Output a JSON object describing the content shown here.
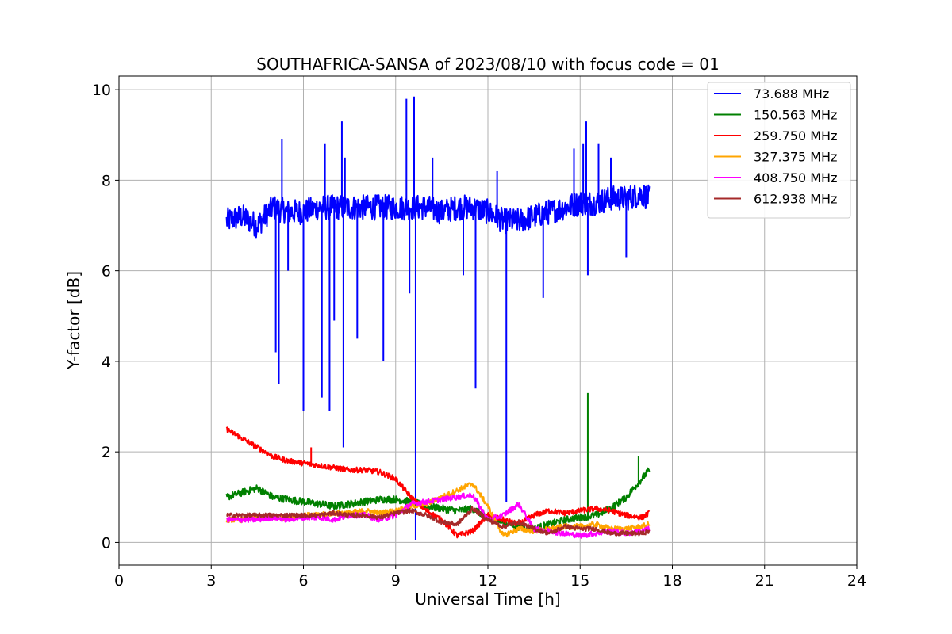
{
  "chart_data": {
    "type": "line",
    "title": "SOUTHAFRICA-SANSA of 2023/08/10 with focus code = 01",
    "xlabel": "Universal Time [h]",
    "ylabel": "Y-factor [dB]",
    "xlim": [
      0,
      24
    ],
    "ylim": [
      -0.5,
      10.3
    ],
    "x_ticks": [
      0,
      3,
      6,
      9,
      12,
      15,
      18,
      21,
      24
    ],
    "y_ticks": [
      0,
      2,
      4,
      6,
      8,
      10
    ],
    "grid": true,
    "legend_position": "top-right",
    "series": [
      {
        "name": " 73.688 MHz",
        "color": "#0000ff",
        "x": [
          3.5,
          4.0,
          4.5,
          5.0,
          5.5,
          6.0,
          6.5,
          7.0,
          7.5,
          8.0,
          8.5,
          9.0,
          9.5,
          10.0,
          10.5,
          11.0,
          11.5,
          12.0,
          12.5,
          13.0,
          13.5,
          14.0,
          14.5,
          15.0,
          15.5,
          16.0,
          16.5,
          17.0,
          17.25
        ],
        "values": [
          7.1,
          7.2,
          7.0,
          7.4,
          7.3,
          7.3,
          7.4,
          7.4,
          7.4,
          7.4,
          7.4,
          7.4,
          7.4,
          7.4,
          7.3,
          7.4,
          7.4,
          7.3,
          7.1,
          7.1,
          7.2,
          7.3,
          7.4,
          7.5,
          7.5,
          7.6,
          7.6,
          7.7,
          7.6
        ],
        "spikes_up": [
          [
            5.3,
            8.9
          ],
          [
            6.7,
            8.8
          ],
          [
            7.25,
            9.3
          ],
          [
            7.35,
            8.5
          ],
          [
            9.35,
            9.8
          ],
          [
            9.6,
            9.85
          ],
          [
            10.2,
            8.5
          ],
          [
            12.3,
            8.2
          ],
          [
            14.8,
            8.7
          ],
          [
            15.1,
            8.8
          ],
          [
            15.2,
            9.3
          ],
          [
            15.6,
            8.8
          ],
          [
            16.0,
            8.5
          ]
        ],
        "spikes_down": [
          [
            5.1,
            4.2
          ],
          [
            5.2,
            3.5
          ],
          [
            5.5,
            6.0
          ],
          [
            6.0,
            2.9
          ],
          [
            6.6,
            3.2
          ],
          [
            6.85,
            2.9
          ],
          [
            7.0,
            4.9
          ],
          [
            7.3,
            2.1
          ],
          [
            7.75,
            4.5
          ],
          [
            8.6,
            4.0
          ],
          [
            9.45,
            5.5
          ],
          [
            9.65,
            0.05
          ],
          [
            11.2,
            5.9
          ],
          [
            11.6,
            3.4
          ],
          [
            12.6,
            0.9
          ],
          [
            13.8,
            5.4
          ],
          [
            15.25,
            5.9
          ],
          [
            16.5,
            6.3
          ]
        ]
      },
      {
        "name": "150.563 MHz",
        "color": "#008000",
        "x": [
          3.5,
          4.0,
          4.5,
          5.0,
          5.5,
          6.0,
          6.5,
          7.0,
          7.5,
          8.0,
          8.5,
          9.0,
          9.5,
          10.0,
          10.5,
          11.0,
          11.5,
          12.0,
          12.5,
          13.0,
          13.5,
          14.0,
          14.5,
          15.0,
          15.5,
          16.0,
          16.5,
          17.0,
          17.25
        ],
        "values": [
          1.0,
          1.1,
          1.2,
          1.0,
          0.95,
          0.9,
          0.85,
          0.8,
          0.85,
          0.9,
          0.95,
          0.95,
          0.9,
          0.8,
          0.75,
          0.7,
          0.75,
          0.55,
          0.45,
          0.35,
          0.3,
          0.4,
          0.5,
          0.55,
          0.6,
          0.75,
          1.0,
          1.4,
          1.6
        ],
        "spikes_up": [
          [
            15.25,
            3.3
          ],
          [
            16.9,
            1.9
          ]
        ],
        "spikes_down": []
      },
      {
        "name": "259.750 MHz",
        "color": "#ff0000",
        "x": [
          3.5,
          4.0,
          4.5,
          5.0,
          5.5,
          6.0,
          6.5,
          7.0,
          7.5,
          8.0,
          8.5,
          9.0,
          9.5,
          10.0,
          10.5,
          11.0,
          11.5,
          12.0,
          12.5,
          13.0,
          13.5,
          14.0,
          14.5,
          15.0,
          15.5,
          16.0,
          16.5,
          17.0,
          17.25
        ],
        "values": [
          2.5,
          2.3,
          2.1,
          1.9,
          1.8,
          1.75,
          1.7,
          1.65,
          1.6,
          1.6,
          1.55,
          1.4,
          1.0,
          0.7,
          0.5,
          0.15,
          0.25,
          0.6,
          0.5,
          0.4,
          0.6,
          0.7,
          0.65,
          0.7,
          0.75,
          0.7,
          0.6,
          0.55,
          0.65
        ],
        "spikes_up": [
          [
            6.25,
            2.1
          ]
        ],
        "spikes_down": []
      },
      {
        "name": "327.375 MHz",
        "color": "#ffa500",
        "x": [
          3.5,
          4.0,
          4.5,
          5.0,
          5.5,
          6.0,
          6.5,
          7.0,
          7.5,
          8.0,
          8.5,
          9.0,
          9.5,
          10.0,
          10.5,
          11.0,
          11.5,
          12.0,
          12.5,
          13.0,
          13.5,
          14.0,
          14.5,
          15.0,
          15.5,
          16.0,
          16.5,
          17.0,
          17.25
        ],
        "values": [
          0.5,
          0.5,
          0.55,
          0.55,
          0.55,
          0.6,
          0.6,
          0.65,
          0.65,
          0.7,
          0.65,
          0.7,
          0.8,
          0.85,
          1.0,
          1.15,
          1.3,
          0.8,
          0.15,
          0.3,
          0.25,
          0.3,
          0.35,
          0.35,
          0.4,
          0.3,
          0.3,
          0.35,
          0.4
        ],
        "spikes_up": [],
        "spikes_down": []
      },
      {
        "name": "408.750 MHz",
        "color": "#ff00ff",
        "x": [
          3.5,
          4.0,
          4.5,
          5.0,
          5.5,
          6.0,
          6.5,
          7.0,
          7.5,
          8.0,
          8.5,
          9.0,
          9.5,
          10.0,
          10.5,
          11.0,
          11.5,
          12.0,
          12.5,
          13.0,
          13.5,
          14.0,
          14.5,
          15.0,
          15.5,
          16.0,
          16.5,
          17.0,
          17.25
        ],
        "values": [
          0.5,
          0.5,
          0.5,
          0.55,
          0.5,
          0.55,
          0.55,
          0.5,
          0.6,
          0.6,
          0.5,
          0.6,
          0.85,
          0.9,
          0.95,
          1.0,
          1.05,
          0.5,
          0.6,
          0.85,
          0.3,
          0.25,
          0.2,
          0.15,
          0.2,
          0.25,
          0.2,
          0.25,
          0.3
        ],
        "spikes_up": [],
        "spikes_down": []
      },
      {
        "name": "612.938 MHz",
        "color": "#a52a2a",
        "x": [
          3.5,
          4.0,
          4.5,
          5.0,
          5.5,
          6.0,
          6.5,
          7.0,
          7.5,
          8.0,
          8.5,
          9.0,
          9.5,
          10.0,
          10.5,
          11.0,
          11.5,
          12.0,
          12.5,
          13.0,
          13.5,
          14.0,
          14.5,
          15.0,
          15.5,
          16.0,
          16.5,
          17.0,
          17.25
        ],
        "values": [
          0.6,
          0.6,
          0.6,
          0.6,
          0.6,
          0.6,
          0.6,
          0.65,
          0.6,
          0.6,
          0.55,
          0.65,
          0.7,
          0.6,
          0.45,
          0.4,
          0.75,
          0.5,
          0.35,
          0.45,
          0.3,
          0.2,
          0.35,
          0.3,
          0.3,
          0.2,
          0.2,
          0.2,
          0.25
        ],
        "spikes_up": [],
        "spikes_down": []
      }
    ]
  }
}
